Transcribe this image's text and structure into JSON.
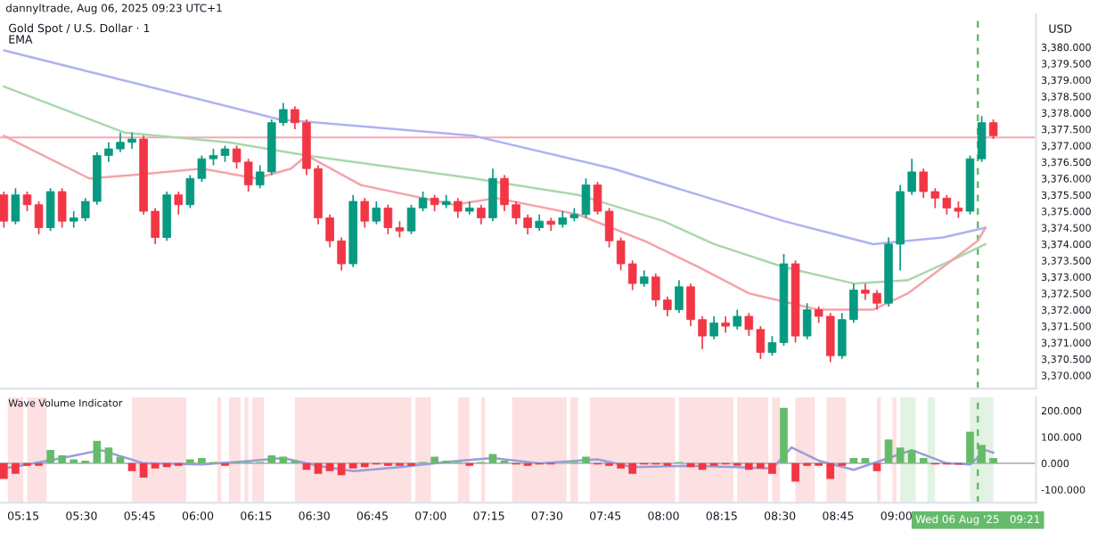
{
  "chart_data": [
    {
      "type": "candlestick",
      "title": "Gold Spot / U.S. Dollar · 1",
      "subtitle": "EMA",
      "ylabel": "USD",
      "annotations": [
        "dannyltrade, Aug 06, 2025 09:23 UTC+1"
      ],
      "x": [
        "2025-08-06T05:10",
        "2025-08-06T05:13",
        "2025-08-06T05:16",
        "2025-08-06T05:19",
        "2025-08-06T05:22",
        "2025-08-06T05:25",
        "2025-08-06T05:28",
        "2025-08-06T05:31",
        "2025-08-06T05:34",
        "2025-08-06T05:37",
        "2025-08-06T05:40",
        "2025-08-06T05:43",
        "2025-08-06T05:46",
        "2025-08-06T05:49",
        "2025-08-06T05:52",
        "2025-08-06T05:55",
        "2025-08-06T05:58",
        "2025-08-06T06:01",
        "2025-08-06T06:04",
        "2025-08-06T06:07",
        "2025-08-06T06:10",
        "2025-08-06T06:13",
        "2025-08-06T06:16",
        "2025-08-06T06:19",
        "2025-08-06T06:22",
        "2025-08-06T06:25",
        "2025-08-06T06:28",
        "2025-08-06T06:31",
        "2025-08-06T06:34",
        "2025-08-06T06:37",
        "2025-08-06T06:40",
        "2025-08-06T06:43",
        "2025-08-06T06:46",
        "2025-08-06T06:49",
        "2025-08-06T06:52",
        "2025-08-06T06:55",
        "2025-08-06T06:58",
        "2025-08-06T07:01",
        "2025-08-06T07:04",
        "2025-08-06T07:07",
        "2025-08-06T07:10",
        "2025-08-06T07:13",
        "2025-08-06T07:16",
        "2025-08-06T07:19",
        "2025-08-06T07:22",
        "2025-08-06T07:25",
        "2025-08-06T07:28",
        "2025-08-06T07:31",
        "2025-08-06T07:34",
        "2025-08-06T07:37",
        "2025-08-06T07:40",
        "2025-08-06T07:43",
        "2025-08-06T07:46",
        "2025-08-06T07:49",
        "2025-08-06T07:52",
        "2025-08-06T07:55",
        "2025-08-06T07:58",
        "2025-08-06T08:01",
        "2025-08-06T08:04",
        "2025-08-06T08:07",
        "2025-08-06T08:10",
        "2025-08-06T08:13",
        "2025-08-06T08:16",
        "2025-08-06T08:19",
        "2025-08-06T08:22",
        "2025-08-06T08:25",
        "2025-08-06T08:28",
        "2025-08-06T08:31",
        "2025-08-06T08:34",
        "2025-08-06T08:37",
        "2025-08-06T08:40",
        "2025-08-06T08:43",
        "2025-08-06T08:46",
        "2025-08-06T08:49",
        "2025-08-06T08:52",
        "2025-08-06T08:55",
        "2025-08-06T08:58",
        "2025-08-06T09:01",
        "2025-08-06T09:04",
        "2025-08-06T09:07",
        "2025-08-06T09:10",
        "2025-08-06T09:13",
        "2025-08-06T09:16",
        "2025-08-06T09:19",
        "2025-08-06T09:22",
        "2025-08-06T09:25"
      ],
      "ohlc": [
        [
          3375.5,
          3375.6,
          3374.5,
          3374.7
        ],
        [
          3374.7,
          3375.7,
          3374.6,
          3375.5
        ],
        [
          3375.5,
          3375.6,
          3375.0,
          3375.2
        ],
        [
          3375.2,
          3375.3,
          3374.3,
          3374.5
        ],
        [
          3374.5,
          3375.7,
          3374.4,
          3375.6
        ],
        [
          3375.6,
          3375.7,
          3374.5,
          3374.7
        ],
        [
          3374.7,
          3375.0,
          3374.5,
          3374.8
        ],
        [
          3374.8,
          3375.4,
          3374.7,
          3375.3
        ],
        [
          3375.3,
          3376.8,
          3375.2,
          3376.7
        ],
        [
          3376.7,
          3377.1,
          3376.5,
          3376.9
        ],
        [
          3376.9,
          3377.4,
          3376.8,
          3377.1
        ],
        [
          3377.1,
          3377.4,
          3376.9,
          3377.2
        ],
        [
          3377.2,
          3377.3,
          3374.9,
          3375.0
        ],
        [
          3375.0,
          3375.1,
          3374.0,
          3374.2
        ],
        [
          3374.2,
          3375.6,
          3374.1,
          3375.5
        ],
        [
          3375.5,
          3375.6,
          3374.9,
          3375.2
        ],
        [
          3375.2,
          3376.1,
          3375.1,
          3376.0
        ],
        [
          3376.0,
          3376.7,
          3375.9,
          3376.6
        ],
        [
          3376.6,
          3376.9,
          3376.4,
          3376.7
        ],
        [
          3376.7,
          3377.0,
          3376.5,
          3376.9
        ],
        [
          3376.9,
          3377.0,
          3376.3,
          3376.5
        ],
        [
          3376.5,
          3376.6,
          3375.6,
          3375.8
        ],
        [
          3375.8,
          3376.4,
          3375.7,
          3376.2
        ],
        [
          3376.2,
          3377.8,
          3376.1,
          3377.7
        ],
        [
          3377.7,
          3378.3,
          3377.6,
          3378.1
        ],
        [
          3378.1,
          3378.2,
          3377.5,
          3377.7
        ],
        [
          3377.7,
          3377.8,
          3376.1,
          3376.3
        ],
        [
          3376.3,
          3376.4,
          3374.6,
          3374.8
        ],
        [
          3374.8,
          3374.9,
          3373.9,
          3374.1
        ],
        [
          3374.1,
          3374.2,
          3373.2,
          3373.4
        ],
        [
          3373.4,
          3375.5,
          3373.3,
          3375.3
        ],
        [
          3375.3,
          3375.4,
          3374.5,
          3374.7
        ],
        [
          3374.7,
          3375.3,
          3374.6,
          3375.1
        ],
        [
          3375.1,
          3375.2,
          3374.3,
          3374.5
        ],
        [
          3374.5,
          3374.7,
          3374.2,
          3374.4
        ],
        [
          3374.4,
          3375.2,
          3374.3,
          3375.1
        ],
        [
          3375.1,
          3375.6,
          3375.0,
          3375.4
        ],
        [
          3375.4,
          3375.5,
          3375.0,
          3375.2
        ],
        [
          3375.2,
          3375.5,
          3375.1,
          3375.3
        ],
        [
          3375.3,
          3375.4,
          3374.8,
          3375.0
        ],
        [
          3375.0,
          3375.3,
          3374.9,
          3375.1
        ],
        [
          3375.1,
          3375.2,
          3374.6,
          3374.8
        ],
        [
          3374.8,
          3376.3,
          3374.7,
          3376.0
        ],
        [
          3376.0,
          3376.1,
          3375.0,
          3375.2
        ],
        [
          3375.2,
          3375.3,
          3374.6,
          3374.8
        ],
        [
          3374.8,
          3374.9,
          3374.3,
          3374.5
        ],
        [
          3374.5,
          3374.9,
          3374.4,
          3374.7
        ],
        [
          3374.7,
          3374.8,
          3374.4,
          3374.6
        ],
        [
          3374.6,
          3375.0,
          3374.5,
          3374.8
        ],
        [
          3374.8,
          3375.1,
          3374.7,
          3374.9
        ],
        [
          3374.9,
          3376.0,
          3374.8,
          3375.8
        ],
        [
          3375.8,
          3375.9,
          3374.9,
          3375.0
        ],
        [
          3375.0,
          3375.1,
          3373.9,
          3374.1
        ],
        [
          3374.1,
          3374.2,
          3373.2,
          3373.4
        ],
        [
          3373.4,
          3373.5,
          3372.6,
          3372.8
        ],
        [
          3372.8,
          3373.2,
          3372.7,
          3373.0
        ],
        [
          3373.0,
          3373.1,
          3372.1,
          3372.3
        ],
        [
          3372.3,
          3372.4,
          3371.8,
          3372.0
        ],
        [
          3372.0,
          3372.9,
          3371.9,
          3372.7
        ],
        [
          3372.7,
          3372.8,
          3371.5,
          3371.7
        ],
        [
          3371.7,
          3371.8,
          3370.8,
          3371.2
        ],
        [
          3371.2,
          3371.8,
          3371.1,
          3371.6
        ],
        [
          3371.6,
          3371.8,
          3371.3,
          3371.5
        ],
        [
          3371.5,
          3372.0,
          3371.4,
          3371.8
        ],
        [
          3371.8,
          3371.9,
          3371.2,
          3371.4
        ],
        [
          3371.4,
          3371.5,
          3370.5,
          3370.7
        ],
        [
          3370.7,
          3371.2,
          3370.6,
          3371.0
        ],
        [
          3371.0,
          3373.7,
          3370.9,
          3373.4
        ],
        [
          3373.4,
          3373.5,
          3371.0,
          3371.2
        ],
        [
          3371.2,
          3372.2,
          3371.1,
          3372.0
        ],
        [
          3372.0,
          3372.1,
          3371.6,
          3371.8
        ],
        [
          3371.8,
          3371.9,
          3370.4,
          3370.6
        ],
        [
          3370.6,
          3371.9,
          3370.5,
          3371.7
        ],
        [
          3371.7,
          3372.8,
          3371.6,
          3372.6
        ],
        [
          3372.6,
          3372.8,
          3372.3,
          3372.5
        ],
        [
          3372.5,
          3372.6,
          3372.0,
          3372.2
        ],
        [
          3372.2,
          3374.2,
          3372.1,
          3374.0
        ],
        [
          3374.0,
          3375.8,
          3373.2,
          3375.6
        ],
        [
          3375.6,
          3376.6,
          3375.5,
          3376.2
        ],
        [
          3376.2,
          3376.3,
          3375.4,
          3375.6
        ],
        [
          3375.6,
          3375.7,
          3375.1,
          3375.4
        ],
        [
          3375.4,
          3375.5,
          3374.9,
          3375.1
        ],
        [
          3375.1,
          3375.3,
          3374.8,
          3375.0
        ],
        [
          3375.0,
          3376.7,
          3374.9,
          3376.6
        ],
        [
          3376.6,
          3377.9,
          3376.5,
          3377.7
        ],
        [
          3377.7,
          3377.8,
          3377.2,
          3377.3
        ]
      ],
      "series": [
        {
          "type": "line",
          "color": "#aeb2f2",
          "x": [
            "2025-08-06T05:10",
            "2025-08-06T06:21",
            "2025-08-06T07:11",
            "2025-08-06T07:47",
            "2025-08-06T08:09",
            "2025-08-06T08:31",
            "2025-08-06T08:54",
            "2025-08-06T09:12",
            "2025-08-06T09:23"
          ],
          "values": [
            3379.9,
            3377.8,
            3377.3,
            3376.3,
            3375.5,
            3374.7,
            3374.0,
            3374.2,
            3374.5
          ]
        },
        {
          "type": "line",
          "color": "#a8d8ab",
          "x": [
            "2025-08-06T05:10",
            "2025-08-06T05:41",
            "2025-08-06T06:08",
            "2025-08-06T06:28",
            "2025-08-06T07:11",
            "2025-08-06T07:38",
            "2025-08-06T08:00",
            "2025-08-06T08:13",
            "2025-08-06T08:31",
            "2025-08-06T08:49",
            "2025-08-06T09:03",
            "2025-08-06T09:16",
            "2025-08-06T09:23"
          ],
          "values": [
            3378.8,
            3377.4,
            3377.1,
            3376.7,
            3376.0,
            3375.5,
            3374.7,
            3374.0,
            3373.3,
            3372.8,
            3372.9,
            3373.6,
            3374.0
          ]
        },
        {
          "type": "line",
          "color": "#f5a3aa",
          "x": [
            "2025-08-06T05:10",
            "2025-08-06T05:32",
            "2025-08-06T05:43",
            "2025-08-06T06:01",
            "2025-08-06T06:15",
            "2025-08-06T06:24",
            "2025-08-06T06:28",
            "2025-08-06T06:42",
            "2025-08-06T07:06",
            "2025-08-06T07:17",
            "2025-08-06T07:38",
            "2025-08-06T07:55",
            "2025-08-06T08:09",
            "2025-08-06T08:22",
            "2025-08-06T08:40",
            "2025-08-06T08:54",
            "2025-08-06T09:03",
            "2025-08-06T09:12",
            "2025-08-06T09:21",
            "2025-08-06T09:23"
          ],
          "values": [
            3377.3,
            3376.0,
            3376.1,
            3376.3,
            3376.0,
            3376.3,
            3376.7,
            3375.8,
            3375.2,
            3375.4,
            3374.9,
            3374.1,
            3373.3,
            3372.5,
            3372.0,
            3372.0,
            3372.5,
            3373.3,
            3374.1,
            3374.5
          ]
        }
      ],
      "ref_lines": [
        {
          "axis": "y",
          "value": 3377.25,
          "color": "#f7a8ae",
          "line_style": "solid"
        },
        {
          "axis": "x",
          "value": "2025-08-06T09:21",
          "color": "#66bb6a",
          "line_style": "dashed"
        }
      ],
      "xlim": [
        "2025-08-06T05:09",
        "2025-08-06T09:36"
      ],
      "ylim": [
        3369.6,
        3381.0
      ],
      "yticks": [
        {
          "value": 3370.0,
          "label": "3,370.000"
        },
        {
          "value": 3370.5,
          "label": "3,370.500"
        },
        {
          "value": 3371.0,
          "label": "3,371.000"
        },
        {
          "value": 3371.5,
          "label": "3,371.500"
        },
        {
          "value": 3372.0,
          "label": "3,372.000"
        },
        {
          "value": 3372.5,
          "label": "3,372.500"
        },
        {
          "value": 3373.0,
          "label": "3,373.000"
        },
        {
          "value": 3373.5,
          "label": "3,373.500"
        },
        {
          "value": 3374.0,
          "label": "3,374.000"
        },
        {
          "value": 3374.5,
          "label": "3,374.500"
        },
        {
          "value": 3375.0,
          "label": "3,375.000"
        },
        {
          "value": 3375.5,
          "label": "3,375.500"
        },
        {
          "value": 3376.0,
          "label": "3,376.000"
        },
        {
          "value": 3376.5,
          "label": "3,376.500"
        },
        {
          "value": 3377.0,
          "label": "3,377.000"
        },
        {
          "value": 3377.5,
          "label": "3,377.500"
        },
        {
          "value": 3378.0,
          "label": "3,378.000"
        },
        {
          "value": 3378.5,
          "label": "3,378.500"
        },
        {
          "value": 3379.0,
          "label": "3,379.000"
        },
        {
          "value": 3379.5,
          "label": "3,379.500"
        },
        {
          "value": 3380.0,
          "label": "3,380.000"
        }
      ],
      "tick_labels": "y",
      "grid": false
    },
    {
      "type": "bar",
      "title": "Wave Volume Indicator",
      "x": [
        "2025-08-06T05:10",
        "2025-08-06T05:13",
        "2025-08-06T05:16",
        "2025-08-06T05:19",
        "2025-08-06T05:22",
        "2025-08-06T05:25",
        "2025-08-06T05:28",
        "2025-08-06T05:31",
        "2025-08-06T05:34",
        "2025-08-06T05:37",
        "2025-08-06T05:40",
        "2025-08-06T05:43",
        "2025-08-06T05:46",
        "2025-08-06T05:49",
        "2025-08-06T05:52",
        "2025-08-06T05:55",
        "2025-08-06T05:58",
        "2025-08-06T06:01",
        "2025-08-06T06:04",
        "2025-08-06T06:07",
        "2025-08-06T06:10",
        "2025-08-06T06:13",
        "2025-08-06T06:16",
        "2025-08-06T06:19",
        "2025-08-06T06:22",
        "2025-08-06T06:25",
        "2025-08-06T06:28",
        "2025-08-06T06:31",
        "2025-08-06T06:34",
        "2025-08-06T06:37",
        "2025-08-06T06:40",
        "2025-08-06T06:43",
        "2025-08-06T06:46",
        "2025-08-06T06:49",
        "2025-08-06T06:52",
        "2025-08-06T06:55",
        "2025-08-06T06:58",
        "2025-08-06T07:01",
        "2025-08-06T07:04",
        "2025-08-06T07:07",
        "2025-08-06T07:10",
        "2025-08-06T07:13",
        "2025-08-06T07:16",
        "2025-08-06T07:19",
        "2025-08-06T07:22",
        "2025-08-06T07:25",
        "2025-08-06T07:28",
        "2025-08-06T07:31",
        "2025-08-06T07:34",
        "2025-08-06T07:37",
        "2025-08-06T07:40",
        "2025-08-06T07:43",
        "2025-08-06T07:46",
        "2025-08-06T07:49",
        "2025-08-06T07:52",
        "2025-08-06T07:55",
        "2025-08-06T07:58",
        "2025-08-06T08:01",
        "2025-08-06T08:04",
        "2025-08-06T08:07",
        "2025-08-06T08:10",
        "2025-08-06T08:13",
        "2025-08-06T08:16",
        "2025-08-06T08:19",
        "2025-08-06T08:22",
        "2025-08-06T08:25",
        "2025-08-06T08:28",
        "2025-08-06T08:31",
        "2025-08-06T08:34",
        "2025-08-06T08:37",
        "2025-08-06T08:40",
        "2025-08-06T08:43",
        "2025-08-06T08:46",
        "2025-08-06T08:49",
        "2025-08-06T08:52",
        "2025-08-06T08:55",
        "2025-08-06T08:58",
        "2025-08-06T09:01",
        "2025-08-06T09:04",
        "2025-08-06T09:07",
        "2025-08-06T09:10",
        "2025-08-06T09:13",
        "2025-08-06T09:16",
        "2025-08-06T09:19",
        "2025-08-06T09:22",
        "2025-08-06T09:25"
      ],
      "values": [
        -60,
        -40,
        -10,
        -10,
        50,
        30,
        15,
        10,
        85,
        60,
        25,
        -30,
        -55,
        -20,
        -15,
        -10,
        15,
        20,
        5,
        -10,
        5,
        5,
        5,
        30,
        25,
        10,
        -25,
        -40,
        -30,
        -45,
        -20,
        -15,
        -5,
        -10,
        -10,
        -10,
        5,
        25,
        10,
        5,
        -10,
        5,
        35,
        10,
        -5,
        -10,
        -5,
        -5,
        0,
        5,
        25,
        -5,
        -10,
        -20,
        -40,
        -5,
        -5,
        -10,
        5,
        -15,
        -25,
        -10,
        -5,
        -10,
        -25,
        -20,
        -40,
        210,
        -70,
        -10,
        -10,
        -60,
        -10,
        20,
        20,
        -30,
        90,
        60,
        50,
        20,
        -5,
        -5,
        -5,
        120,
        70,
        20
      ],
      "colors": [
        "#f23645",
        "#f23645",
        "#f23645",
        "#f23645",
        "#66bb6a",
        "#66bb6a",
        "#66bb6a",
        "#66bb6a",
        "#66bb6a",
        "#66bb6a",
        "#66bb6a",
        "#f23645",
        "#f23645",
        "#f23645",
        "#f23645",
        "#f23645",
        "#66bb6a",
        "#66bb6a",
        "#66bb6a",
        "#f23645",
        "#66bb6a",
        "#66bb6a",
        "#66bb6a",
        "#66bb6a",
        "#66bb6a",
        "#66bb6a",
        "#f23645",
        "#f23645",
        "#f23645",
        "#f23645",
        "#f23645",
        "#f23645",
        "#f23645",
        "#f23645",
        "#f23645",
        "#f23645",
        "#66bb6a",
        "#66bb6a",
        "#66bb6a",
        "#66bb6a",
        "#f23645",
        "#66bb6a",
        "#66bb6a",
        "#66bb6a",
        "#f23645",
        "#f23645",
        "#f23645",
        "#f23645",
        "#66bb6a",
        "#66bb6a",
        "#66bb6a",
        "#f23645",
        "#f23645",
        "#f23645",
        "#f23645",
        "#f23645",
        "#f23645",
        "#f23645",
        "#66bb6a",
        "#f23645",
        "#f23645",
        "#f23645",
        "#f23645",
        "#f23645",
        "#f23645",
        "#f23645",
        "#f23645",
        "#66bb6a",
        "#f23645",
        "#f23645",
        "#f23645",
        "#f23645",
        "#f23645",
        "#66bb6a",
        "#66bb6a",
        "#f23645",
        "#66bb6a",
        "#66bb6a",
        "#66bb6a",
        "#66bb6a",
        "#f23645",
        "#f23645",
        "#f23645",
        "#66bb6a",
        "#66bb6a",
        "#66bb6a"
      ],
      "series": [
        {
          "type": "line",
          "color": "#9a9ddb",
          "x": [
            "2025-08-06T05:10",
            "2025-08-06T05:16",
            "2025-08-06T05:25",
            "2025-08-06T05:35",
            "2025-08-06T05:46",
            "2025-08-06T06:01",
            "2025-08-06T06:10",
            "2025-08-06T06:22",
            "2025-08-06T06:31",
            "2025-08-06T06:40",
            "2025-08-06T06:52",
            "2025-08-06T07:04",
            "2025-08-06T07:16",
            "2025-08-06T07:28",
            "2025-08-06T07:43",
            "2025-08-06T07:52",
            "2025-08-06T08:07",
            "2025-08-06T08:19",
            "2025-08-06T08:28",
            "2025-08-06T08:33",
            "2025-08-06T08:40",
            "2025-08-06T08:49",
            "2025-08-06T08:58",
            "2025-08-06T09:04",
            "2025-08-06T09:13",
            "2025-08-06T09:19",
            "2025-08-06T09:23",
            "2025-08-06T09:25"
          ],
          "values": [
            -20,
            -5,
            20,
            50,
            0,
            -5,
            5,
            20,
            -10,
            -30,
            -15,
            5,
            20,
            0,
            15,
            -15,
            -10,
            -15,
            -20,
            60,
            10,
            -25,
            20,
            50,
            0,
            -5,
            50,
            40
          ]
        }
      ],
      "bands": [
        {
          "axis": "x",
          "from": "2025-08-06T05:11",
          "to": "2025-08-06T05:15",
          "color": "#fde0e2"
        },
        {
          "axis": "x",
          "from": "2025-08-06T05:16",
          "to": "2025-08-06T05:21",
          "color": "#fde0e2"
        },
        {
          "axis": "x",
          "from": "2025-08-06T05:43",
          "to": "2025-08-06T05:57",
          "color": "#fde0e2"
        },
        {
          "axis": "x",
          "from": "2025-08-06T06:05",
          "to": "2025-08-06T06:06",
          "color": "#fde0e2"
        },
        {
          "axis": "x",
          "from": "2025-08-06T06:08",
          "to": "2025-08-06T06:11",
          "color": "#fde0e2"
        },
        {
          "axis": "x",
          "from": "2025-08-06T06:12",
          "to": "2025-08-06T06:13",
          "color": "#fde0e2"
        },
        {
          "axis": "x",
          "from": "2025-08-06T06:14",
          "to": "2025-08-06T06:17",
          "color": "#fde0e2"
        },
        {
          "axis": "x",
          "from": "2025-08-06T06:25",
          "to": "2025-08-06T06:55",
          "color": "#fde0e2"
        },
        {
          "axis": "x",
          "from": "2025-08-06T06:56",
          "to": "2025-08-06T07:00",
          "color": "#fde0e2"
        },
        {
          "axis": "x",
          "from": "2025-08-06T07:07",
          "to": "2025-08-06T07:10",
          "color": "#fde0e2"
        },
        {
          "axis": "x",
          "from": "2025-08-06T07:13",
          "to": "2025-08-06T07:14",
          "color": "#fde0e2"
        },
        {
          "axis": "x",
          "from": "2025-08-06T07:21",
          "to": "2025-08-06T07:35",
          "color": "#fde0e2"
        },
        {
          "axis": "x",
          "from": "2025-08-06T07:36",
          "to": "2025-08-06T07:38",
          "color": "#fde0e2"
        },
        {
          "axis": "x",
          "from": "2025-08-06T07:41",
          "to": "2025-08-06T08:03",
          "color": "#fde0e2"
        },
        {
          "axis": "x",
          "from": "2025-08-06T08:04",
          "to": "2025-08-06T08:18",
          "color": "#fde0e2"
        },
        {
          "axis": "x",
          "from": "2025-08-06T08:19",
          "to": "2025-08-06T08:27",
          "color": "#fde0e2"
        },
        {
          "axis": "x",
          "from": "2025-08-06T08:28",
          "to": "2025-08-06T08:30",
          "color": "#fde0e2"
        },
        {
          "axis": "x",
          "from": "2025-08-06T08:34",
          "to": "2025-08-06T08:39",
          "color": "#fde0e2"
        },
        {
          "axis": "x",
          "from": "2025-08-06T08:42",
          "to": "2025-08-06T08:47",
          "color": "#fde0e2"
        },
        {
          "axis": "x",
          "from": "2025-08-06T08:55",
          "to": "2025-08-06T08:56",
          "color": "#fde0e2"
        },
        {
          "axis": "x",
          "from": "2025-08-06T08:59",
          "to": "2025-08-06T09:00",
          "color": "#fde0e2"
        },
        {
          "axis": "x",
          "from": "2025-08-06T09:01",
          "to": "2025-08-06T09:05",
          "color": "#e2f3e3"
        },
        {
          "axis": "x",
          "from": "2025-08-06T09:08",
          "to": "2025-08-06T09:10",
          "color": "#e2f3e3"
        },
        {
          "axis": "x",
          "from": "2025-08-06T09:19",
          "to": "2025-08-06T09:25",
          "color": "#e2f3e3"
        }
      ],
      "ref_lines": [
        {
          "axis": "y",
          "value": 0,
          "color": "#b2b5be",
          "line_style": "solid"
        },
        {
          "axis": "x",
          "value": "2025-08-06T09:21",
          "color": "#66bb6a",
          "line_style": "dashed",
          "label": "Wed 06 Aug '25   09:21"
        }
      ],
      "xlim": [
        "2025-08-06T05:09",
        "2025-08-06T09:36"
      ],
      "ylim": [
        -150,
        250
      ],
      "xticks": [
        {
          "value": "2025-08-06T05:15",
          "label": "05:15"
        },
        {
          "value": "2025-08-06T05:30",
          "label": "05:30"
        },
        {
          "value": "2025-08-06T05:45",
          "label": "05:45"
        },
        {
          "value": "2025-08-06T06:00",
          "label": "06:00"
        },
        {
          "value": "2025-08-06T06:15",
          "label": "06:15"
        },
        {
          "value": "2025-08-06T06:30",
          "label": "06:30"
        },
        {
          "value": "2025-08-06T06:45",
          "label": "06:45"
        },
        {
          "value": "2025-08-06T07:00",
          "label": "07:00"
        },
        {
          "value": "2025-08-06T07:15",
          "label": "07:15"
        },
        {
          "value": "2025-08-06T07:30",
          "label": "07:30"
        },
        {
          "value": "2025-08-06T07:45",
          "label": "07:45"
        },
        {
          "value": "2025-08-06T08:00",
          "label": "08:00"
        },
        {
          "value": "2025-08-06T08:15",
          "label": "08:15"
        },
        {
          "value": "2025-08-06T08:30",
          "label": "08:30"
        },
        {
          "value": "2025-08-06T08:45",
          "label": "08:45"
        },
        {
          "value": "2025-08-06T09:00",
          "label": "09:00"
        }
      ],
      "yticks": [
        {
          "value": -100,
          "label": "-100.000"
        },
        {
          "value": 0,
          "label": "0.000"
        },
        {
          "value": 100,
          "label": "100.000"
        },
        {
          "value": 200,
          "label": "200.000"
        }
      ],
      "grid": false
    }
  ]
}
